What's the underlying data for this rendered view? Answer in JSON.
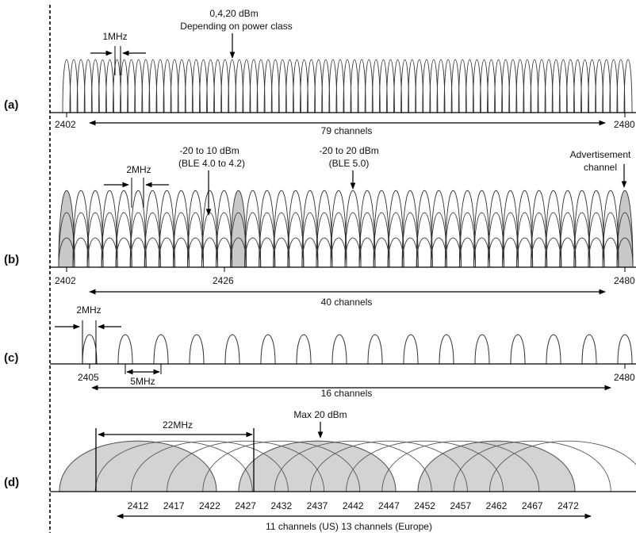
{
  "panels": {
    "a": {
      "label": "(a)",
      "power_title": "0,4,20 dBm",
      "power_subtitle": "Depending on power class",
      "spacing": "1MHz",
      "tick_start": "2402",
      "tick_end": "2480",
      "channels_label": "79 channels",
      "channel_count": 79
    },
    "b": {
      "label": "(b)",
      "power_legacy_title": "-20 to 10 dBm",
      "power_legacy_subtitle": "(BLE 4.0 to 4.2)",
      "power_new_title": "-20 to 20 dBm",
      "power_new_subtitle": "(BLE 5.0)",
      "adv_title": "Advertisement",
      "adv_subtitle": "channel",
      "spacing": "2MHz",
      "tick_start": "2402",
      "tick_mid": "2426",
      "tick_end": "2480",
      "channels_label": "40 channels",
      "channel_count": 40
    },
    "c": {
      "label": "(c)",
      "width": "2MHz",
      "spacing": "5MHz",
      "tick_start": "2405",
      "tick_end": "2480",
      "channels_label": "16 channels",
      "channel_count": 16
    },
    "d": {
      "label": "(d)",
      "width": "22MHz",
      "power": "Max 20 dBm",
      "ticks": [
        "2412",
        "2417",
        "2422",
        "2427",
        "2432",
        "2437",
        "2442",
        "2447",
        "2452",
        "2457",
        "2462",
        "2467",
        "2472"
      ],
      "channels_label": "11 channels (US) 13 channels (Europe)",
      "shaded_color": "#d3d3d3"
    }
  }
}
